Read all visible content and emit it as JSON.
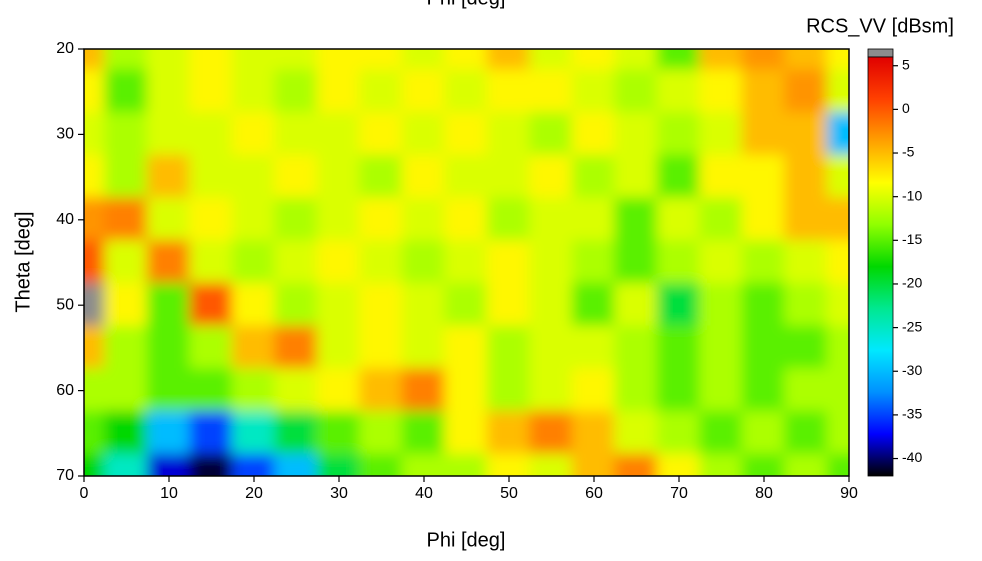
{
  "chart_data": {
    "type": "heatmap",
    "x_label_top": "Phi [deg]",
    "x_label": "Phi [deg]",
    "y_label": "Theta [deg]",
    "colorbar_label": "RCS_VV [dBsm]",
    "x": [
      0,
      5,
      10,
      15,
      20,
      25,
      30,
      35,
      40,
      45,
      50,
      55,
      60,
      65,
      70,
      75,
      80,
      85,
      90
    ],
    "y": [
      20,
      25,
      30,
      35,
      40,
      45,
      50,
      55,
      60,
      65,
      70
    ],
    "z": [
      [
        -5,
        -12,
        -10,
        -8,
        -10,
        -10,
        -8,
        -8,
        -10,
        -8,
        -5,
        -10,
        -8,
        -10,
        -15,
        -5,
        -3,
        -5,
        -8
      ],
      [
        -8,
        -15,
        -10,
        -8,
        -10,
        -12,
        -8,
        -10,
        -8,
        -10,
        -8,
        -8,
        -10,
        -12,
        -10,
        -8,
        -5,
        -3,
        -10
      ],
      [
        -10,
        -12,
        -10,
        -10,
        -8,
        -10,
        -10,
        -8,
        -10,
        -8,
        -10,
        -12,
        -8,
        -10,
        -12,
        -10,
        -5,
        -5,
        -30
      ],
      [
        -8,
        -12,
        -5,
        -10,
        -10,
        -8,
        -10,
        -12,
        -8,
        -10,
        -10,
        -8,
        -12,
        -10,
        -15,
        -8,
        -8,
        -5,
        -10
      ],
      [
        -3,
        -2,
        -10,
        -8,
        -10,
        -12,
        -10,
        -8,
        -10,
        -8,
        -12,
        -10,
        -10,
        -15,
        -10,
        -12,
        -8,
        -5,
        -5
      ],
      [
        0,
        -10,
        -2,
        -10,
        -12,
        -10,
        -8,
        -10,
        -12,
        -10,
        -8,
        -10,
        -12,
        -15,
        -12,
        -10,
        -12,
        -10,
        -8
      ],
      [
        7,
        -8,
        -15,
        0,
        -8,
        -12,
        -10,
        -8,
        -10,
        -12,
        -8,
        -10,
        -15,
        -10,
        -20,
        -12,
        -15,
        -12,
        -10
      ],
      [
        -5,
        -12,
        -15,
        -12,
        -5,
        -2,
        -10,
        -8,
        -10,
        -8,
        -12,
        -10,
        -10,
        -12,
        -15,
        -12,
        -15,
        -15,
        -12
      ],
      [
        -12,
        -12,
        -15,
        -15,
        -12,
        -10,
        -8,
        -5,
        -2,
        -8,
        -12,
        -10,
        -8,
        -12,
        -15,
        -12,
        -15,
        -12,
        -12
      ],
      [
        -15,
        -18,
        -30,
        -35,
        -25,
        -20,
        -15,
        -12,
        -15,
        -8,
        -5,
        -2,
        -5,
        -10,
        -12,
        -15,
        -12,
        -15,
        -12
      ],
      [
        -18,
        -25,
        -38,
        -41,
        -35,
        -30,
        -20,
        -15,
        -12,
        -12,
        -8,
        -10,
        -5,
        -2,
        -8,
        -12,
        -15,
        -12,
        -15
      ]
    ],
    "xlim": [
      0,
      90
    ],
    "ylim": [
      20,
      70
    ],
    "xticks": [
      0,
      10,
      20,
      30,
      40,
      50,
      60,
      70,
      80,
      90
    ],
    "yticks": [
      20,
      30,
      40,
      50,
      60,
      70
    ],
    "y_inverted": true,
    "zlim": [
      -42,
      6
    ],
    "zticks": [
      5,
      0,
      -5,
      -10,
      -15,
      -20,
      -25,
      -30,
      -35,
      -40
    ],
    "colors": [
      "#000000",
      "#0000ff",
      "#0090ff",
      "#00e8ff",
      "#00e890",
      "#00d800",
      "#90ff00",
      "#ffff00",
      "#ffa000",
      "#ff4000",
      "#e00000"
    ],
    "over_color": "#8c8c8c"
  }
}
